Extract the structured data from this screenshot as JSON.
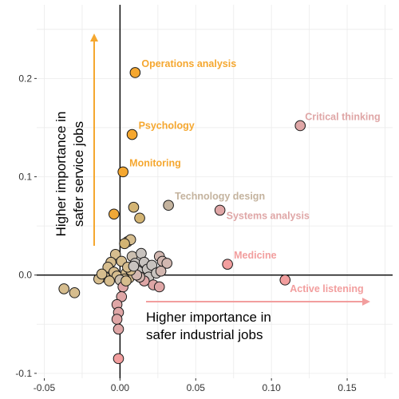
{
  "chart_data": {
    "type": "scatter",
    "title": "",
    "xlabel": "",
    "ylabel": "",
    "xlim": [
      -0.055,
      0.18
    ],
    "ylim": [
      -0.105,
      0.275
    ],
    "grid": true,
    "x_ticks": [
      -0.05,
      0.0,
      0.05,
      0.1,
      0.15
    ],
    "x_tick_labels": [
      "-0.05",
      "0.00",
      "0.05",
      "0.10",
      "0.15"
    ],
    "y_ticks": [
      -0.1,
      0.0,
      0.1,
      0.2
    ],
    "y_tick_labels": [
      "-0.1",
      "0.0",
      "0.1",
      "0.2"
    ],
    "colors": {
      "orange": "#f5a72f",
      "tan": "#d6bd8e",
      "gray": "#c8c3bf",
      "rose": "#dfa6a6",
      "salmon": "#f29e9e"
    },
    "annotations": [
      {
        "text": "Higher importance in\nsafer service jobs",
        "direction": "up",
        "color": "#f5a72f"
      },
      {
        "text": "Higher importance in\nsafer industrial jobs",
        "direction": "right",
        "color": "#f29e9e"
      }
    ],
    "points": [
      {
        "x": 0.01,
        "y": 0.206,
        "color": "#f5a72f",
        "label": "Operations analysis",
        "label_color": "#f5a72f"
      },
      {
        "x": 0.008,
        "y": 0.143,
        "color": "#f5a72f",
        "label": "Psychology",
        "label_color": "#f5a72f"
      },
      {
        "x": 0.002,
        "y": 0.105,
        "color": "#f5a72f",
        "label": "Monitoring",
        "label_color": "#f5a72f"
      },
      {
        "x": 0.119,
        "y": 0.152,
        "color": "#dfa6a6",
        "label": "Critical thinking",
        "label_color": "#dfa6a6"
      },
      {
        "x": 0.032,
        "y": 0.071,
        "color": "#c4b39e",
        "label": "Technology design",
        "label_color": "#c4b39e"
      },
      {
        "x": 0.066,
        "y": 0.066,
        "color": "#dfa6a6",
        "label": "Systems analysis",
        "label_color": "#dfa6a6"
      },
      {
        "x": 0.071,
        "y": 0.011,
        "color": "#f29e9e",
        "label": "Medicine",
        "label_color": "#f29e9e"
      },
      {
        "x": 0.109,
        "y": -0.005,
        "color": "#f29e9e",
        "label": "Active listening",
        "label_color": "#f29e9e"
      },
      {
        "x": -0.004,
        "y": 0.062,
        "color": "#f0a838",
        "label": ""
      },
      {
        "x": 0.009,
        "y": 0.069,
        "color": "#d3b473",
        "label": ""
      },
      {
        "x": 0.013,
        "y": 0.058,
        "color": "#d3b473",
        "label": ""
      },
      {
        "x": -0.037,
        "y": -0.014,
        "color": "#d6bd8e",
        "label": ""
      },
      {
        "x": -0.03,
        "y": -0.018,
        "color": "#d6bd8e",
        "label": ""
      },
      {
        "x": 0.005,
        "y": 0.034,
        "color": "#d6bd8e",
        "label": ""
      },
      {
        "x": 0.007,
        "y": 0.036,
        "color": "#d6bd8e",
        "label": ""
      },
      {
        "x": 0.003,
        "y": 0.032,
        "color": "#d3b473",
        "label": ""
      },
      {
        "x": -0.003,
        "y": 0.021,
        "color": "#d6bd8e",
        "label": ""
      },
      {
        "x": -0.006,
        "y": 0.013,
        "color": "#d6bd8e",
        "label": ""
      },
      {
        "x": -0.008,
        "y": 0.008,
        "color": "#d6bd8e",
        "label": ""
      },
      {
        "x": -0.004,
        "y": 0.003,
        "color": "#d6bd8e",
        "label": ""
      },
      {
        "x": 0.001,
        "y": 0.014,
        "color": "#d6bd8e",
        "label": ""
      },
      {
        "x": -0.002,
        "y": -0.001,
        "color": "#d6bd8e",
        "label": ""
      },
      {
        "x": -0.01,
        "y": -0.002,
        "color": "#d6bd8e",
        "label": ""
      },
      {
        "x": -0.014,
        "y": -0.004,
        "color": "#d6bd8e",
        "label": ""
      },
      {
        "x": 0.004,
        "y": 0.002,
        "color": "#d6bd8e",
        "label": ""
      },
      {
        "x": 0.006,
        "y": -0.003,
        "color": "#d6bd8e",
        "label": ""
      },
      {
        "x": 0.008,
        "y": 0.019,
        "color": "#cbbfb0",
        "label": ""
      },
      {
        "x": 0.01,
        "y": 0.012,
        "color": "#c8c3bf",
        "label": ""
      },
      {
        "x": 0.014,
        "y": 0.022,
        "color": "#c8c3bf",
        "label": ""
      },
      {
        "x": 0.016,
        "y": 0.013,
        "color": "#c8c3bf",
        "label": ""
      },
      {
        "x": 0.012,
        "y": 0.004,
        "color": "#c8c3bf",
        "label": ""
      },
      {
        "x": 0.018,
        "y": 0.006,
        "color": "#c8c3bf",
        "label": ""
      },
      {
        "x": 0.021,
        "y": 0.01,
        "color": "#c8c3bf",
        "label": ""
      },
      {
        "x": 0.019,
        "y": -0.002,
        "color": "#c8c3bf",
        "label": ""
      },
      {
        "x": 0.024,
        "y": 0.002,
        "color": "#c8c3bf",
        "label": ""
      },
      {
        "x": 0.026,
        "y": 0.019,
        "color": "#d2b7b0",
        "label": ""
      },
      {
        "x": 0.028,
        "y": 0.014,
        "color": "#d2b7b0",
        "label": ""
      },
      {
        "x": 0.031,
        "y": 0.012,
        "color": "#d2b7b0",
        "label": ""
      },
      {
        "x": 0.027,
        "y": 0.004,
        "color": "#d2b7b0",
        "label": ""
      },
      {
        "x": 0.022,
        "y": -0.01,
        "color": "#dfa6a6",
        "label": ""
      },
      {
        "x": 0.026,
        "y": -0.012,
        "color": "#dfa6a6",
        "label": ""
      },
      {
        "x": 0.016,
        "y": -0.006,
        "color": "#dfa6a6",
        "label": ""
      },
      {
        "x": 0.013,
        "y": -0.002,
        "color": "#d2b7b0",
        "label": ""
      },
      {
        "x": 0.011,
        "y": 0.0,
        "color": "#d2b7b0",
        "label": ""
      },
      {
        "x": 0.003,
        "y": -0.004,
        "color": "#d6bd8e",
        "label": ""
      },
      {
        "x": 0.0,
        "y": -0.005,
        "color": "#cbbfb0",
        "label": ""
      },
      {
        "x": 0.002,
        "y": -0.012,
        "color": "#dfa6a6",
        "label": ""
      },
      {
        "x": 0.001,
        "y": -0.022,
        "color": "#dfa6a6",
        "label": ""
      },
      {
        "x": -0.002,
        "y": -0.03,
        "color": "#dfa6a6",
        "label": ""
      },
      {
        "x": -0.001,
        "y": -0.038,
        "color": "#dfa6a6",
        "label": ""
      },
      {
        "x": -0.002,
        "y": -0.045,
        "color": "#dfa6a6",
        "label": ""
      },
      {
        "x": -0.001,
        "y": -0.055,
        "color": "#dfa6a6",
        "label": ""
      },
      {
        "x": -0.001,
        "y": -0.085,
        "color": "#f29e9e",
        "label": ""
      },
      {
        "x": 0.007,
        "y": 0.005,
        "color": "#d6bd8e",
        "label": ""
      },
      {
        "x": 0.005,
        "y": 0.008,
        "color": "#d6bd8e",
        "label": ""
      },
      {
        "x": -0.007,
        "y": -0.006,
        "color": "#d6bd8e",
        "label": ""
      },
      {
        "x": -0.012,
        "y": 0.001,
        "color": "#d6bd8e",
        "label": ""
      },
      {
        "x": 0.009,
        "y": 0.009,
        "color": "#c8c3bf",
        "label": ""
      },
      {
        "x": 0.004,
        "y": -0.006,
        "color": "#d6bd8e",
        "label": ""
      }
    ]
  }
}
